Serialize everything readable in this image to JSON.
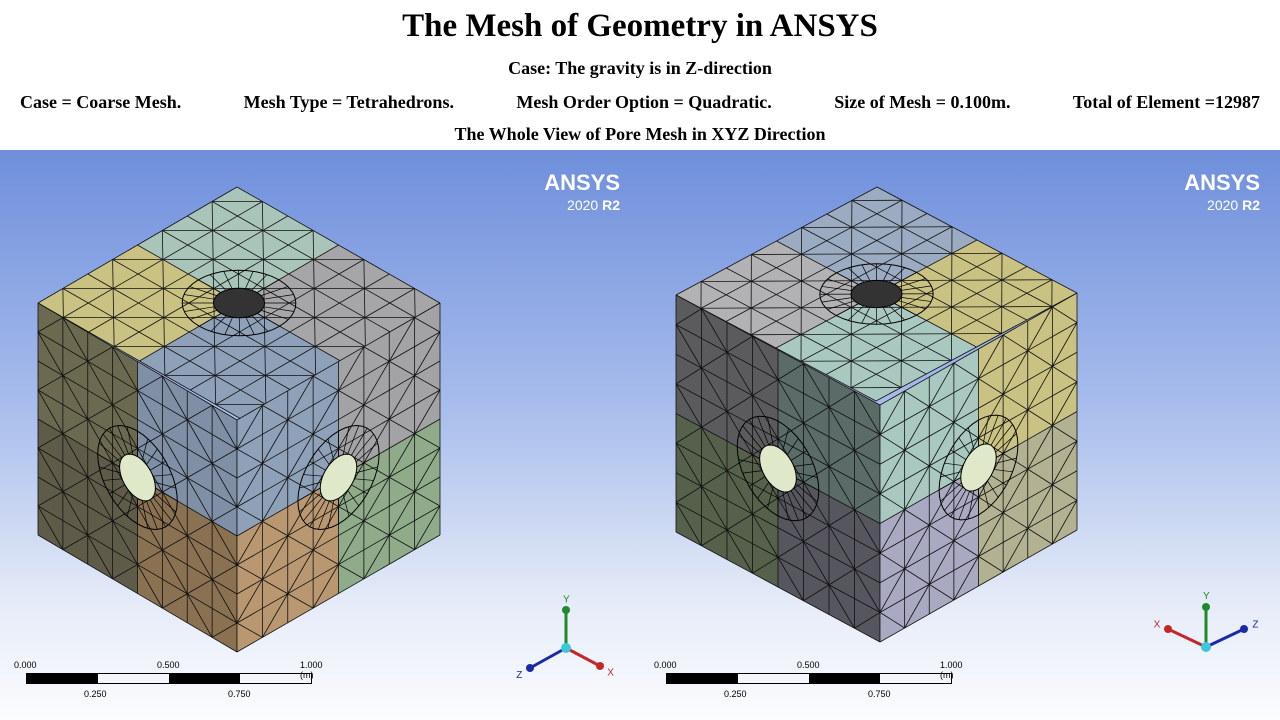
{
  "header": {
    "title": "The Mesh of Geometry in ANSYS",
    "subtitle": "Case: The gravity is in Z-direction",
    "info": [
      "Case = Coarse Mesh.",
      "Mesh Type = Tetrahedrons.",
      "Mesh Order Option = Quadratic.",
      "Size of Mesh = 0.100m.",
      "Total of Element =12987"
    ],
    "view_caption": "The Whole View of Pore Mesh in XYZ  Direction"
  },
  "logo": {
    "brand": "ANSYS",
    "version": "2020",
    "release": "R2"
  },
  "scale_bar": {
    "labels_top": [
      "0.000",
      "0.500",
      "1.000"
    ],
    "unit": "(m)",
    "labels_bottom": [
      "0.250",
      "0.750"
    ]
  },
  "triad": {
    "x": "X",
    "y": "Y",
    "z": "Z",
    "x_color": "#c0282a",
    "y_color": "#1e8a2a",
    "z_color": "#1a2aa8"
  },
  "views": [
    {
      "faces": {
        "top": [
          "#a9c5b9",
          "#c9c283",
          "#a6a6a8",
          "#8fa1b9"
        ],
        "left": [
          "#6b6a50",
          "#7e8fa6",
          "#5f5b49",
          "#8a7152"
        ],
        "right": [
          "#8fa1b9",
          "#a3a3a5",
          "#b99770",
          "#8fab8a"
        ]
      }
    },
    {
      "faces": {
        "top": [
          "#9aabc2",
          "#b2b2b4",
          "#c9c283",
          "#a8c8c0"
        ],
        "left": [
          "#5b5b5d",
          "#5b6b67",
          "#56614b",
          "#56565f"
        ],
        "right": [
          "#a8c8c0",
          "#c9c283",
          "#a9a9c2",
          "#b2b293"
        ]
      }
    }
  ]
}
